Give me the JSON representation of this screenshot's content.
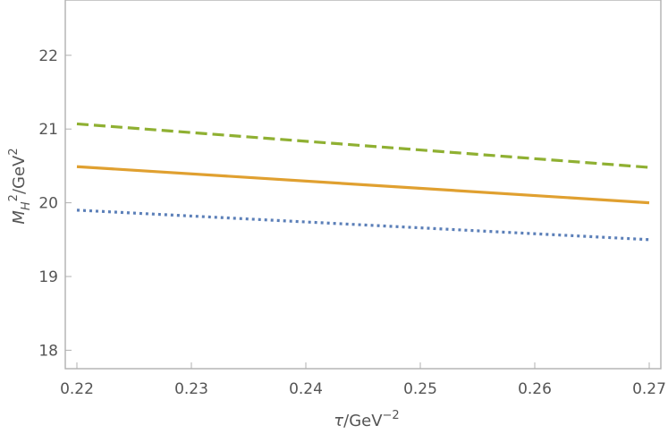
{
  "chart_data": {
    "type": "line",
    "title": "",
    "xlabel": "τ/GeV⁻²",
    "ylabel": "M_H²/GeV²",
    "xlim": [
      0.22,
      0.27
    ],
    "ylim": [
      17.75,
      22.75
    ],
    "x_ticks": [
      "0.22",
      "0.23",
      "0.24",
      "0.25",
      "0.26",
      "0.27"
    ],
    "y_ticks": [
      "18",
      "19",
      "20",
      "21",
      "22"
    ],
    "grid": false,
    "legend": "none",
    "series": [
      {
        "style": "dashed",
        "color": "#8fb032",
        "x": [
          0.22,
          0.27
        ],
        "values": [
          21.07,
          20.48
        ]
      },
      {
        "style": "solid",
        "color": "#e0a030",
        "x": [
          0.22,
          0.27
        ],
        "values": [
          20.49,
          20.0
        ]
      },
      {
        "style": "dotted",
        "color": "#5b7fb8",
        "x": [
          0.22,
          0.27
        ],
        "values": [
          19.9,
          19.5
        ]
      }
    ]
  }
}
